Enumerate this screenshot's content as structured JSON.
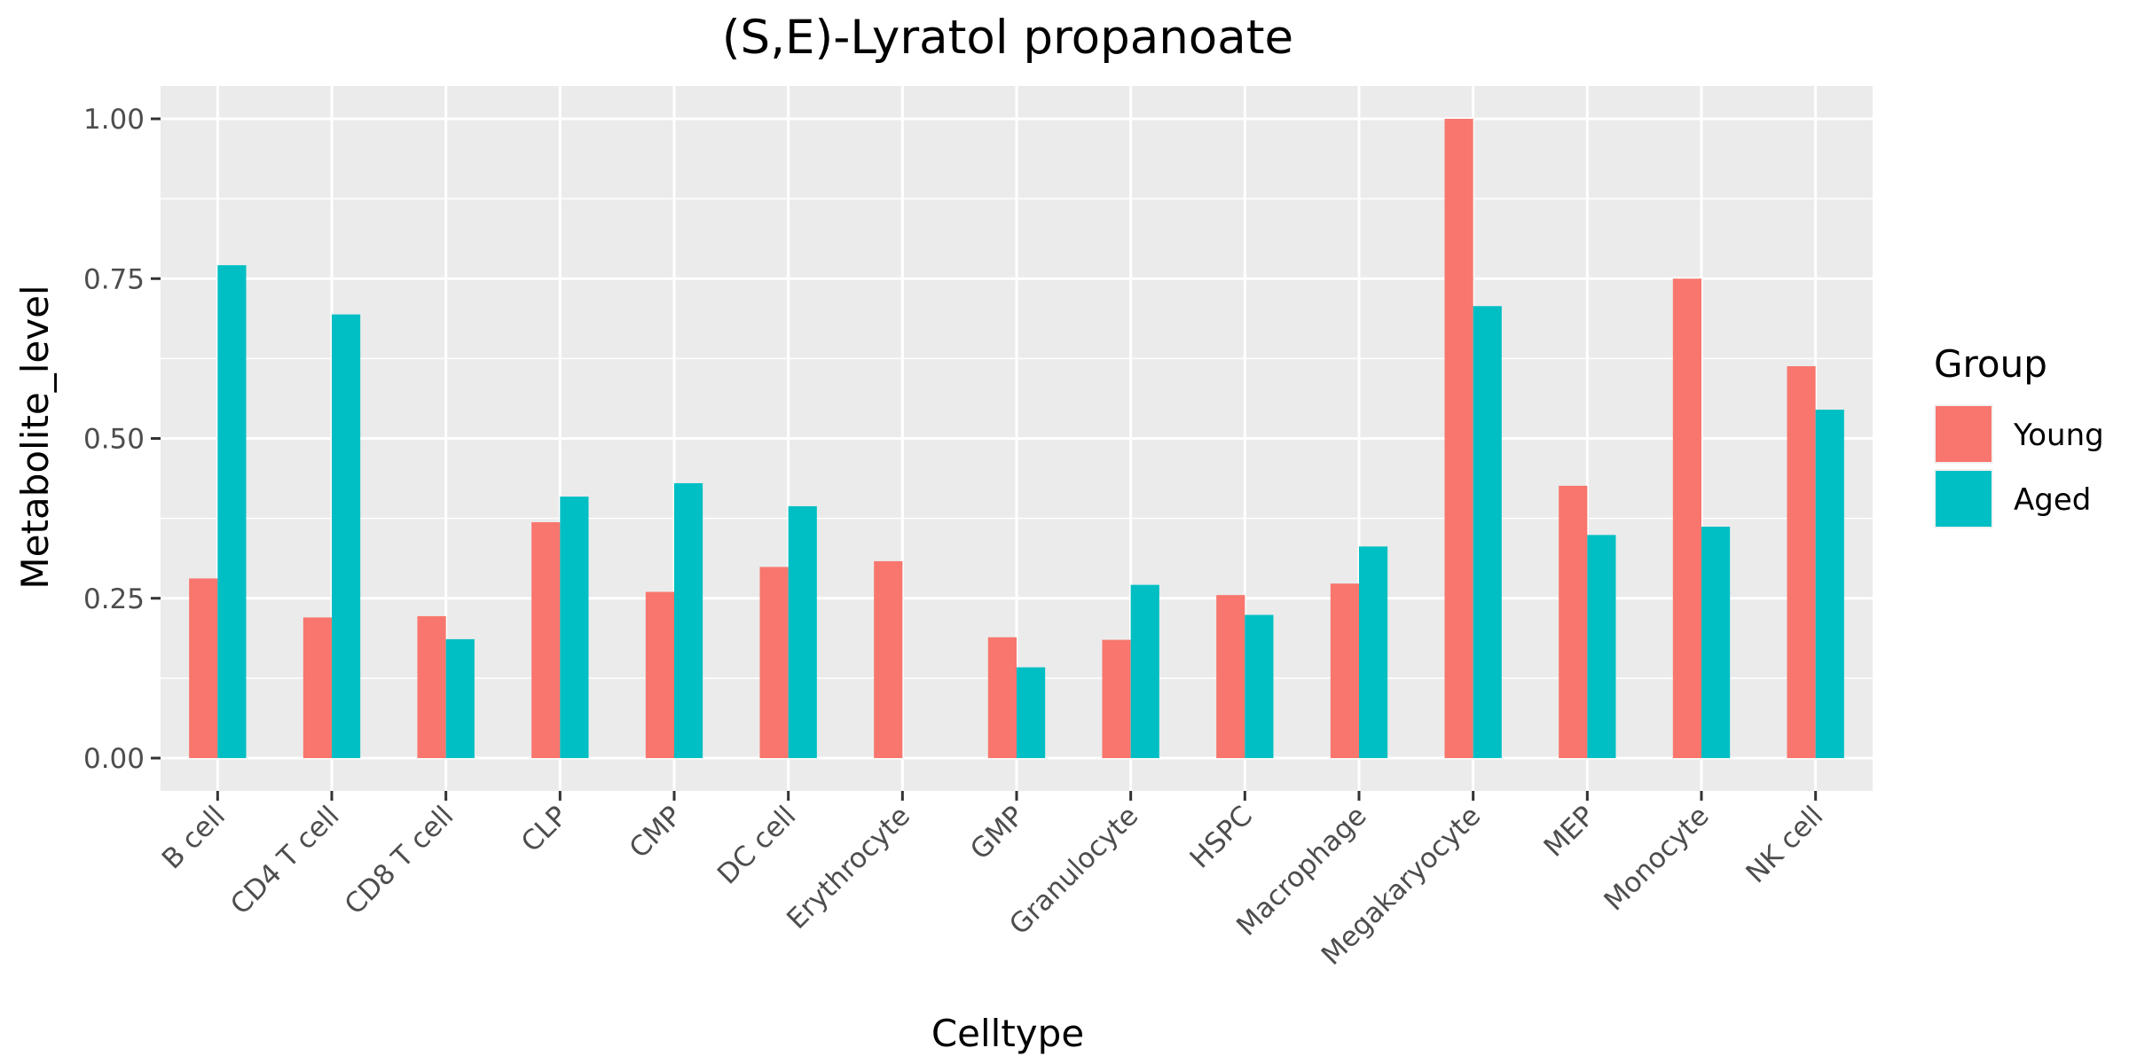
{
  "chart_data": {
    "type": "bar",
    "title": "(S,E)-Lyratol propanoate",
    "xlabel": "Celltype",
    "ylabel": "Metabolite_level",
    "categories": [
      "B cell",
      "CD4 T cell",
      "CD8 T cell",
      "CLP",
      "CMP",
      "DC cell",
      "Erythrocyte",
      "GMP",
      "Granulocyte",
      "HSPC",
      "Macrophage",
      "Megakaryocyte",
      "MEP",
      "Monocyte",
      "NK cell"
    ],
    "series": [
      {
        "name": "Young",
        "color": "#F8766D",
        "values": [
          0.281,
          0.22,
          0.222,
          0.369,
          0.26,
          0.299,
          0.308,
          0.189,
          0.185,
          0.255,
          0.273,
          1.0,
          0.426,
          0.75,
          0.613
        ]
      },
      {
        "name": "Aged",
        "color": "#00BFC4",
        "values": [
          0.771,
          0.694,
          0.186,
          0.409,
          0.43,
          0.394,
          null,
          0.142,
          0.271,
          0.224,
          0.331,
          0.707,
          0.349,
          0.362,
          0.545
        ]
      }
    ],
    "ylim": [
      -0.05,
      1.05
    ],
    "yticks": [
      0.0,
      0.25,
      0.5,
      0.75,
      1.0
    ],
    "ytick_labels": [
      "0.00",
      "0.25",
      "0.50",
      "0.75",
      "1.00"
    ],
    "legend": {
      "title": "Group",
      "position": "right"
    },
    "grid": true,
    "panel_background": "#EBEBEB"
  }
}
